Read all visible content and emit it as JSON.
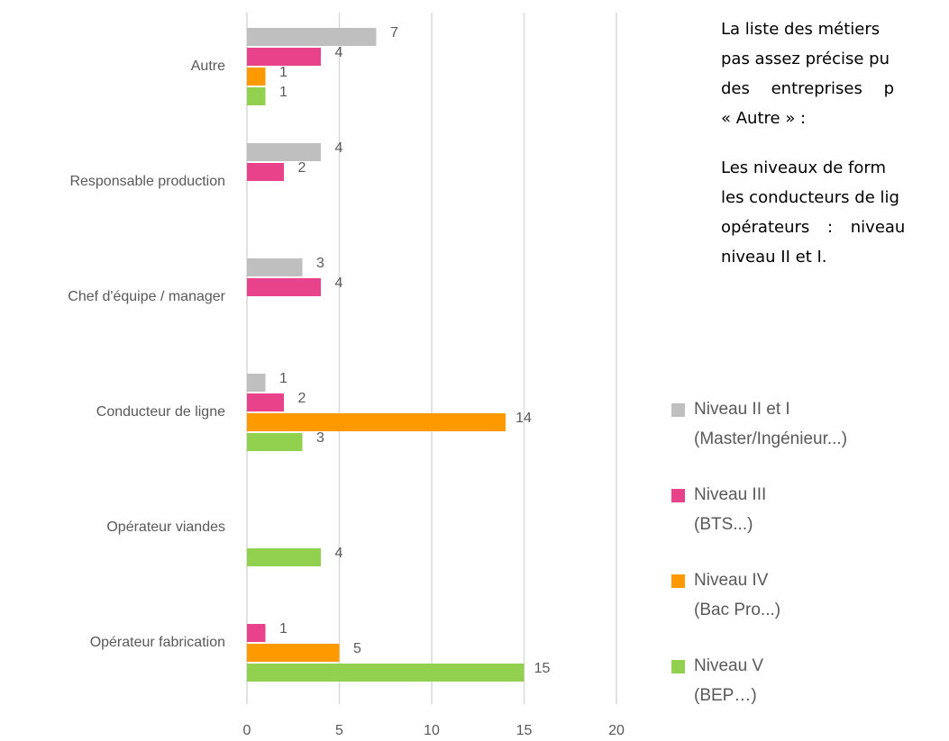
{
  "chart_data": {
    "type": "bar",
    "orientation": "horizontal",
    "categories": [
      "Autre",
      "Responsable production",
      "Chef d'équipe / manager",
      "Conducteur de ligne",
      "Opérateur viandes",
      "Opérateur fabrication"
    ],
    "series": [
      {
        "name": "Niveau II et I (Master/Ingénieur...)",
        "color": "#bfbfbf",
        "values": [
          7,
          4,
          3,
          1,
          null,
          null
        ]
      },
      {
        "name": "Niveau III (BTS...)",
        "color": "#e8438a",
        "values": [
          4,
          2,
          4,
          2,
          null,
          1
        ]
      },
      {
        "name": "Niveau IV (Bac Pro...)",
        "color": "#ff9900",
        "values": [
          1,
          null,
          null,
          14,
          null,
          5
        ]
      },
      {
        "name": "Niveau V (BEP…)",
        "color": "#92d050",
        "values": [
          1,
          null,
          null,
          3,
          4,
          15
        ]
      }
    ],
    "xlim": [
      0,
      20
    ],
    "xticks": [
      0,
      5,
      10,
      15,
      20
    ],
    "grid": true
  },
  "notes": [
    [
      "La liste des métiers",
      "pas assez précise pu",
      "des entreprises p",
      "« Autre » :"
    ],
    [
      "Les niveaux de form",
      "les conducteurs de lig",
      "opérateurs : niveau",
      "niveau II et I."
    ]
  ]
}
